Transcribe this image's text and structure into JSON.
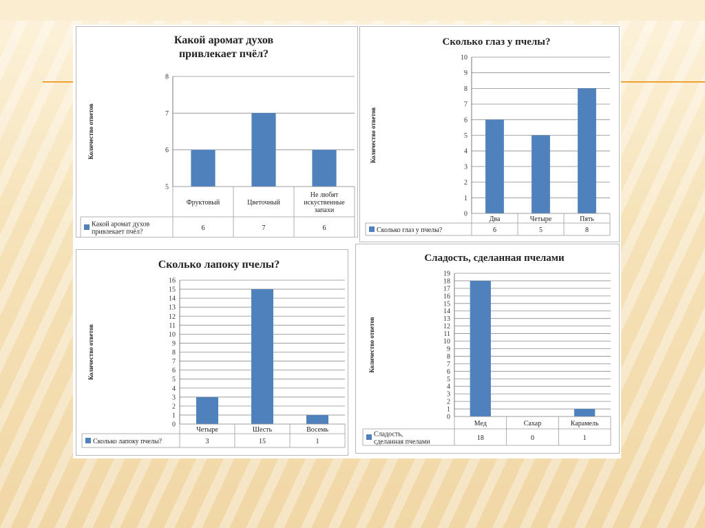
{
  "colors": {
    "bar": "#4f81bd",
    "grid": "#8c8c8c"
  },
  "chart_data": [
    {
      "type": "bar",
      "title": "Какой аромат духов привлекает пчёл?",
      "ylabel": "Количество ответов",
      "categories": [
        "Фруктовый",
        "Цветочный",
        "Не любят искуственные запахи"
      ],
      "series": [
        {
          "name": "Какой аромат духов привлекает пчёл?",
          "values": [
            6,
            7,
            6
          ]
        }
      ],
      "ylim": [
        5,
        8
      ],
      "yticks": [
        5,
        6,
        7,
        8
      ],
      "data_table": true,
      "grid": true
    },
    {
      "type": "bar",
      "title": "Сколько глаз у пчелы?",
      "ylabel": "Количество ответов",
      "categories": [
        "Два",
        "Четыре",
        "Пять"
      ],
      "series": [
        {
          "name": "Сколько глаз у пчелы?",
          "values": [
            6,
            5,
            8
          ]
        }
      ],
      "ylim": [
        0,
        10
      ],
      "yticks": [
        0,
        1,
        2,
        3,
        4,
        5,
        6,
        7,
        8,
        9,
        10
      ],
      "data_table": true,
      "grid": true
    },
    {
      "type": "bar",
      "title": "Сколько лапоку пчелы?",
      "ylabel": "Количество ответов",
      "categories": [
        "Четыре",
        "Шесть",
        "Восемь"
      ],
      "series": [
        {
          "name": "Сколько лапоку пчелы?",
          "values": [
            3,
            15,
            1
          ]
        }
      ],
      "ylim": [
        0,
        16
      ],
      "yticks": [
        0,
        1,
        2,
        3,
        4,
        5,
        6,
        7,
        8,
        9,
        10,
        11,
        12,
        13,
        14,
        15,
        16
      ],
      "data_table": true,
      "grid": true
    },
    {
      "type": "bar",
      "title": "Сладость, сделанная пчелами",
      "ylabel": "Количество ответов",
      "categories": [
        "Мед",
        "Сахар",
        "Карамель"
      ],
      "series": [
        {
          "name": "Сладость, сделанная пчелами",
          "values": [
            18,
            0,
            1
          ]
        }
      ],
      "ylim": [
        0,
        19
      ],
      "yticks": [
        0,
        1,
        2,
        3,
        4,
        5,
        6,
        7,
        8,
        9,
        10,
        11,
        12,
        13,
        14,
        15,
        16,
        17,
        18,
        19
      ],
      "data_table": true,
      "grid": true
    }
  ]
}
